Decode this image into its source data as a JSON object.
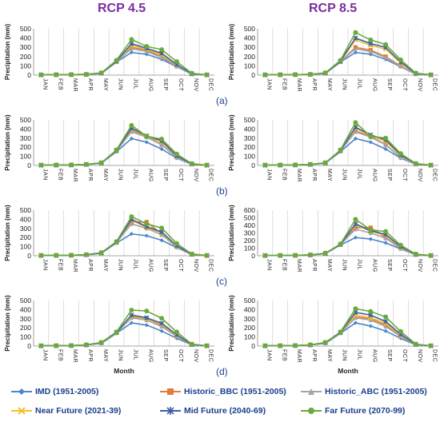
{
  "headers": {
    "left": "RCP 4.5",
    "right": "RCP 8.5"
  },
  "panel_labels": [
    "(a)",
    "(b)",
    "(c)",
    "(d)"
  ],
  "series_colors": [
    "#4a86c8",
    "#e07b39",
    "#a5a5a5",
    "#f2c12e",
    "#3d5fa8",
    "#6aaa3a"
  ],
  "series_markers": [
    "diamond",
    "square",
    "triangle",
    "x",
    "star",
    "circle"
  ],
  "legend": [
    "IMD (1951-2005)",
    "Historic_BBC (1951-2005)",
    "Historic_ABC (1951-2005)",
    "Near Future (2021-39)",
    "Mid Future (2040-69)",
    "Far Future (2070-99)"
  ],
  "chart_data": [
    {
      "type": "line",
      "panel": "(a)",
      "scenario": "RCP 4.5",
      "categories": [
        "JAN",
        "FEB",
        "MAR",
        "APR",
        "MAY",
        "JUN",
        "JUL",
        "AUG",
        "SEP",
        "OCT",
        "NOV",
        "DEC"
      ],
      "ylabel": "Precipitation (mm)",
      "xlabel": "",
      "ylim": [
        0,
        500
      ],
      "yticks": [
        0,
        100,
        200,
        300,
        400,
        500
      ],
      "series": [
        {
          "name": "IMD (1951-2005)",
          "values": [
            3,
            4,
            5,
            8,
            18,
            140,
            245,
            225,
            170,
            90,
            10,
            3
          ]
        },
        {
          "name": "Historic_BBC (1951-2005)",
          "values": [
            3,
            4,
            5,
            8,
            20,
            145,
            300,
            270,
            200,
            100,
            15,
            3
          ]
        },
        {
          "name": "Historic_ABC (1951-2005)",
          "values": [
            3,
            4,
            5,
            8,
            20,
            145,
            285,
            255,
            190,
            95,
            12,
            3
          ]
        },
        {
          "name": "Near Future (2021-39)",
          "values": [
            3,
            4,
            5,
            8,
            22,
            150,
            320,
            280,
            220,
            110,
            15,
            3
          ]
        },
        {
          "name": "Mid Future (2040-69)",
          "values": [
            3,
            4,
            5,
            8,
            22,
            150,
            340,
            290,
            235,
            115,
            15,
            3
          ]
        },
        {
          "name": "Far Future (2070-99)",
          "values": [
            3,
            4,
            5,
            8,
            25,
            160,
            385,
            310,
            275,
            145,
            20,
            3
          ]
        }
      ]
    },
    {
      "type": "line",
      "panel": "(a)",
      "scenario": "RCP 8.5",
      "categories": [
        "JAN",
        "FEB",
        "MAR",
        "APR",
        "MAY",
        "JUN",
        "JUL",
        "AUG",
        "SEP",
        "OCT",
        "NOV",
        "DEC"
      ],
      "ylabel": "Precipitation (mm)",
      "xlabel": "",
      "ylim": [
        0,
        500
      ],
      "yticks": [
        0,
        100,
        200,
        300,
        400,
        500
      ],
      "series": [
        {
          "name": "IMD (1951-2005)",
          "values": [
            3,
            4,
            5,
            8,
            18,
            140,
            245,
            225,
            170,
            90,
            10,
            3
          ]
        },
        {
          "name": "Historic_BBC (1951-2005)",
          "values": [
            3,
            4,
            5,
            8,
            20,
            145,
            300,
            270,
            200,
            100,
            15,
            3
          ]
        },
        {
          "name": "Historic_ABC (1951-2005)",
          "values": [
            3,
            4,
            5,
            8,
            20,
            145,
            285,
            255,
            190,
            95,
            12,
            3
          ]
        },
        {
          "name": "Near Future (2021-39)",
          "values": [
            3,
            4,
            5,
            8,
            22,
            150,
            380,
            320,
            280,
            130,
            18,
            3
          ]
        },
        {
          "name": "Mid Future (2040-69)",
          "values": [
            3,
            4,
            5,
            8,
            22,
            150,
            400,
            340,
            300,
            140,
            18,
            3
          ]
        },
        {
          "name": "Far Future (2070-99)",
          "values": [
            3,
            4,
            5,
            8,
            25,
            160,
            460,
            380,
            330,
            165,
            22,
            3
          ]
        }
      ]
    },
    {
      "type": "line",
      "panel": "(b)",
      "scenario": "RCP 4.5",
      "categories": [
        "JAN",
        "FEB",
        "MAR",
        "APR",
        "MAY",
        "JUN",
        "JUL",
        "AUG",
        "SEP",
        "OCT",
        "NOV",
        "DEC"
      ],
      "ylabel": "Precipitation (mm)",
      "xlabel": "",
      "ylim": [
        0,
        500
      ],
      "yticks": [
        0,
        100,
        200,
        300,
        400,
        500
      ],
      "series": [
        {
          "name": "IMD (1951-2005)",
          "values": [
            3,
            4,
            5,
            12,
            25,
            150,
            295,
            255,
            180,
            80,
            12,
            3
          ]
        },
        {
          "name": "Historic_BBC (1951-2005)",
          "values": [
            3,
            4,
            5,
            10,
            25,
            160,
            380,
            320,
            230,
            90,
            15,
            3
          ]
        },
        {
          "name": "Historic_ABC (1951-2005)",
          "values": [
            3,
            4,
            5,
            10,
            25,
            160,
            370,
            310,
            225,
            88,
            14,
            3
          ]
        },
        {
          "name": "Near Future (2021-39)",
          "values": [
            3,
            4,
            5,
            10,
            28,
            165,
            400,
            320,
            260,
            100,
            15,
            3
          ]
        },
        {
          "name": "Mid Future (2040-69)",
          "values": [
            3,
            4,
            5,
            10,
            28,
            165,
            410,
            325,
            270,
            105,
            16,
            3
          ]
        },
        {
          "name": "Far Future (2070-99)",
          "values": [
            3,
            4,
            5,
            12,
            30,
            170,
            440,
            320,
            290,
            125,
            20,
            3
          ]
        }
      ]
    },
    {
      "type": "line",
      "panel": "(b)",
      "scenario": "RCP 8.5",
      "categories": [
        "JAN",
        "FEB",
        "MAR",
        "APR",
        "MAY",
        "JUN",
        "JUL",
        "AUG",
        "SEP",
        "OCT",
        "NOV",
        "DEC"
      ],
      "ylabel": "Precipitation (mm)",
      "xlabel": "",
      "ylim": [
        0,
        500
      ],
      "yticks": [
        0,
        100,
        200,
        300,
        400,
        500
      ],
      "series": [
        {
          "name": "IMD (1951-2005)",
          "values": [
            3,
            4,
            5,
            12,
            25,
            150,
            295,
            255,
            180,
            80,
            12,
            3
          ]
        },
        {
          "name": "Historic_BBC (1951-2005)",
          "values": [
            3,
            4,
            5,
            10,
            25,
            160,
            380,
            320,
            230,
            90,
            15,
            3
          ]
        },
        {
          "name": "Historic_ABC (1951-2005)",
          "values": [
            3,
            4,
            5,
            10,
            25,
            160,
            370,
            310,
            225,
            88,
            14,
            3
          ]
        },
        {
          "name": "Near Future (2021-39)",
          "values": [
            3,
            4,
            5,
            10,
            28,
            165,
            410,
            330,
            265,
            110,
            16,
            3
          ]
        },
        {
          "name": "Mid Future (2040-69)",
          "values": [
            3,
            4,
            5,
            10,
            28,
            165,
            420,
            335,
            280,
            115,
            18,
            3
          ]
        },
        {
          "name": "Far Future (2070-99)",
          "values": [
            3,
            4,
            5,
            12,
            30,
            170,
            470,
            320,
            300,
            130,
            22,
            3
          ]
        }
      ]
    },
    {
      "type": "line",
      "panel": "(c)",
      "scenario": "RCP 4.5",
      "categories": [
        "JAN",
        "FEB",
        "MAR",
        "APR",
        "MAY",
        "JUN",
        "JUL",
        "AUG",
        "SEP",
        "OCT",
        "NOV",
        "DEC"
      ],
      "ylabel": "Precipitation (mm)",
      "xlabel": "",
      "ylim": [
        0,
        500
      ],
      "yticks": [
        0,
        100,
        200,
        300,
        400,
        500
      ],
      "series": [
        {
          "name": "IMD (1951-2005)",
          "values": [
            3,
            4,
            5,
            12,
            30,
            140,
            240,
            220,
            170,
            90,
            12,
            3
          ]
        },
        {
          "name": "Historic_BBC (1951-2005)",
          "values": [
            3,
            4,
            5,
            10,
            28,
            150,
            370,
            370,
            240,
            100,
            15,
            3
          ]
        },
        {
          "name": "Historic_ABC (1951-2005)",
          "values": [
            3,
            4,
            5,
            10,
            28,
            145,
            350,
            300,
            230,
            95,
            14,
            3
          ]
        },
        {
          "name": "Near Future (2021-39)",
          "values": [
            3,
            4,
            5,
            10,
            30,
            150,
            390,
            310,
            250,
            105,
            15,
            3
          ]
        },
        {
          "name": "Mid Future (2040-69)",
          "values": [
            3,
            4,
            5,
            10,
            30,
            150,
            400,
            320,
            260,
            110,
            16,
            3
          ]
        },
        {
          "name": "Far Future (2070-99)",
          "values": [
            3,
            4,
            5,
            12,
            35,
            155,
            430,
            350,
            305,
            135,
            20,
            3
          ]
        }
      ]
    },
    {
      "type": "line",
      "panel": "(c)",
      "scenario": "RCP 8.5",
      "categories": [
        "JAN",
        "FEB",
        "MAR",
        "APR",
        "MAY",
        "JUN",
        "JUL",
        "AUG",
        "SEP",
        "OCT",
        "NOV",
        "DEC"
      ],
      "ylabel": "Precipitation (mm)",
      "xlabel": "",
      "ylim": [
        0,
        600
      ],
      "yticks": [
        0,
        100,
        200,
        300,
        400,
        500,
        600
      ],
      "series": [
        {
          "name": "IMD (1951-2005)",
          "values": [
            3,
            4,
            5,
            12,
            30,
            140,
            240,
            220,
            170,
            90,
            12,
            3
          ]
        },
        {
          "name": "Historic_BBC (1951-2005)",
          "values": [
            3,
            4,
            5,
            10,
            28,
            150,
            370,
            370,
            240,
            100,
            15,
            3
          ]
        },
        {
          "name": "Historic_ABC (1951-2005)",
          "values": [
            3,
            4,
            5,
            10,
            28,
            145,
            350,
            300,
            230,
            95,
            14,
            3
          ]
        },
        {
          "name": "Near Future (2021-39)",
          "values": [
            3,
            4,
            5,
            10,
            30,
            150,
            410,
            320,
            270,
            115,
            16,
            3
          ]
        },
        {
          "name": "Mid Future (2040-69)",
          "values": [
            3,
            4,
            5,
            10,
            30,
            150,
            420,
            330,
            280,
            120,
            18,
            3
          ]
        },
        {
          "name": "Far Future (2070-99)",
          "values": [
            3,
            4,
            5,
            12,
            35,
            155,
            480,
            340,
            320,
            140,
            22,
            3
          ]
        }
      ]
    },
    {
      "type": "line",
      "panel": "(d)",
      "scenario": "RCP 4.5",
      "categories": [
        "JAN",
        "FEB",
        "MAR",
        "APR",
        "MAY",
        "JUN",
        "JUL",
        "AUG",
        "SEP",
        "OCT",
        "NOV",
        "DEC"
      ],
      "ylabel": "Precipitation (mm)",
      "xlabel": "Month",
      "ylim": [
        0,
        500
      ],
      "yticks": [
        0,
        100,
        200,
        300,
        400,
        500
      ],
      "series": [
        {
          "name": "IMD (1951-2005)",
          "values": [
            3,
            4,
            5,
            12,
            30,
            140,
            255,
            230,
            165,
            85,
            12,
            3
          ]
        },
        {
          "name": "Historic_BBC (1951-2005)",
          "values": [
            3,
            4,
            5,
            12,
            35,
            145,
            320,
            300,
            230,
            110,
            15,
            3
          ]
        },
        {
          "name": "Historic_ABC (1951-2005)",
          "values": [
            3,
            4,
            5,
            12,
            35,
            145,
            310,
            285,
            215,
            105,
            14,
            3
          ]
        },
        {
          "name": "Near Future (2021-39)",
          "values": [
            3,
            4,
            5,
            12,
            38,
            150,
            330,
            300,
            240,
            120,
            16,
            3
          ]
        },
        {
          "name": "Mid Future (2040-69)",
          "values": [
            3,
            4,
            5,
            12,
            38,
            150,
            340,
            310,
            250,
            125,
            17,
            3
          ]
        },
        {
          "name": "Far Future (2070-99)",
          "values": [
            3,
            4,
            5,
            14,
            40,
            155,
            395,
            385,
            305,
            155,
            22,
            3
          ]
        }
      ]
    },
    {
      "type": "line",
      "panel": "(d)",
      "scenario": "RCP 8.5",
      "categories": [
        "JAN",
        "FEB",
        "MAR",
        "APR",
        "MAY",
        "JUN",
        "JUL",
        "AUG",
        "SEP",
        "OCT",
        "NOV",
        "DEC"
      ],
      "ylabel": "Precipitation (mm)",
      "xlabel": "Month",
      "ylim": [
        0,
        500
      ],
      "yticks": [
        0,
        100,
        200,
        300,
        400,
        500
      ],
      "series": [
        {
          "name": "IMD (1951-2005)",
          "values": [
            3,
            4,
            5,
            12,
            30,
            140,
            255,
            220,
            165,
            85,
            12,
            3
          ]
        },
        {
          "name": "Historic_BBC (1951-2005)",
          "values": [
            3,
            4,
            5,
            12,
            35,
            145,
            320,
            300,
            230,
            110,
            15,
            3
          ]
        },
        {
          "name": "Historic_ABC (1951-2005)",
          "values": [
            3,
            4,
            5,
            12,
            35,
            145,
            310,
            285,
            215,
            105,
            14,
            3
          ]
        },
        {
          "name": "Near Future (2021-39)",
          "values": [
            3,
            4,
            5,
            12,
            38,
            150,
            340,
            310,
            250,
            125,
            17,
            3
          ]
        },
        {
          "name": "Mid Future (2040-69)",
          "values": [
            3,
            4,
            5,
            12,
            38,
            150,
            370,
            340,
            270,
            130,
            18,
            3
          ]
        },
        {
          "name": "Far Future (2070-99)",
          "values": [
            3,
            4,
            5,
            14,
            40,
            155,
            410,
            380,
            320,
            160,
            22,
            3
          ]
        }
      ]
    }
  ]
}
